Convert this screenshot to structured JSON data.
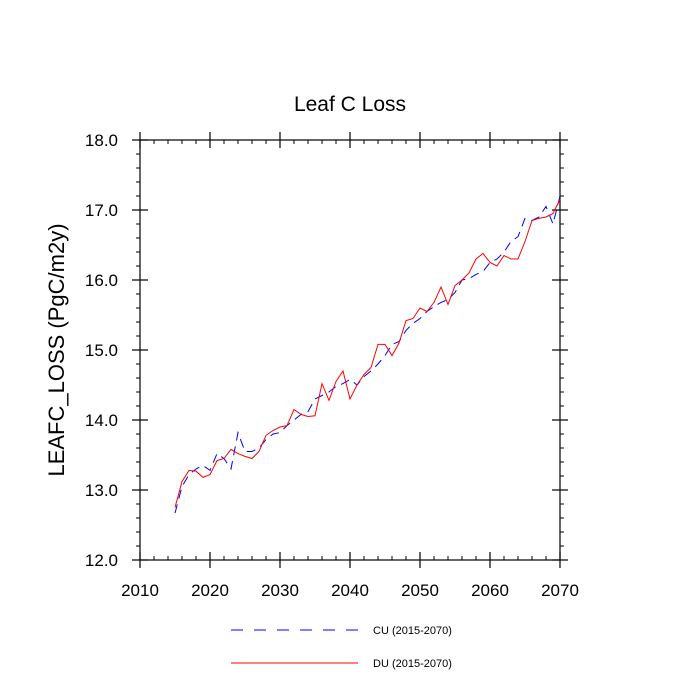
{
  "chart_data": {
    "type": "line",
    "title": "Leaf C Loss",
    "xlabel": "",
    "ylabel": "LEAFC_LOSS  (PgC/m2y)",
    "xlim": [
      2010,
      2070
    ],
    "ylim": [
      12.0,
      18.0
    ],
    "x_ticks": [
      2010,
      2020,
      2030,
      2040,
      2050,
      2060,
      2070
    ],
    "x_tick_labels": [
      "2010",
      "2020",
      "2030",
      "2040",
      "2050",
      "2060",
      "2070"
    ],
    "y_ticks": [
      12.0,
      13.0,
      14.0,
      15.0,
      16.0,
      17.0,
      18.0
    ],
    "y_tick_labels": [
      "12.0",
      "13.0",
      "14.0",
      "15.0",
      "16.0",
      "17.0",
      "18.0"
    ],
    "x": [
      2015,
      2016,
      2017,
      2018,
      2019,
      2020,
      2021,
      2022,
      2023,
      2024,
      2025,
      2026,
      2027,
      2028,
      2029,
      2030,
      2031,
      2032,
      2033,
      2034,
      2035,
      2036,
      2037,
      2038,
      2039,
      2040,
      2041,
      2042,
      2043,
      2044,
      2045,
      2046,
      2047,
      2048,
      2049,
      2050,
      2051,
      2052,
      2053,
      2054,
      2055,
      2056,
      2057,
      2058,
      2059,
      2060,
      2061,
      2062,
      2063,
      2064,
      2065,
      2066,
      2067,
      2068,
      2069,
      2070
    ],
    "series": [
      {
        "name": "CU (2015-2070)",
        "color": "#0000ff",
        "style": "dashed",
        "values": [
          12.67,
          13.05,
          13.22,
          13.3,
          13.35,
          13.28,
          13.52,
          13.45,
          13.3,
          13.82,
          13.55,
          13.55,
          13.6,
          13.72,
          13.8,
          13.82,
          13.92,
          14.0,
          14.08,
          14.12,
          14.3,
          14.35,
          14.4,
          14.48,
          14.52,
          14.58,
          14.5,
          14.62,
          14.7,
          14.8,
          14.92,
          15.08,
          15.12,
          15.28,
          15.38,
          15.45,
          15.55,
          15.62,
          15.68,
          15.72,
          15.82,
          16.0,
          16.02,
          16.08,
          16.12,
          16.25,
          16.3,
          16.4,
          16.55,
          16.62,
          16.88,
          16.85,
          16.9,
          17.05,
          16.8,
          17.2
        ]
      },
      {
        "name": "DU (2015-2070)",
        "color": "#ff0000",
        "style": "solid",
        "values": [
          12.75,
          13.12,
          13.28,
          13.27,
          13.18,
          13.22,
          13.42,
          13.45,
          13.58,
          13.52,
          13.48,
          13.45,
          13.55,
          13.78,
          13.85,
          13.9,
          13.92,
          14.15,
          14.08,
          14.05,
          14.06,
          14.52,
          14.28,
          14.55,
          14.7,
          14.3,
          14.5,
          14.65,
          14.75,
          15.08,
          15.08,
          14.92,
          15.1,
          15.42,
          15.45,
          15.6,
          15.55,
          15.68,
          15.9,
          15.65,
          15.92,
          16.0,
          16.1,
          16.3,
          16.38,
          16.25,
          16.2,
          16.35,
          16.3,
          16.3,
          16.55,
          16.85,
          16.88,
          16.9,
          16.95,
          17.15
        ]
      }
    ],
    "legend_position": "bottom"
  }
}
